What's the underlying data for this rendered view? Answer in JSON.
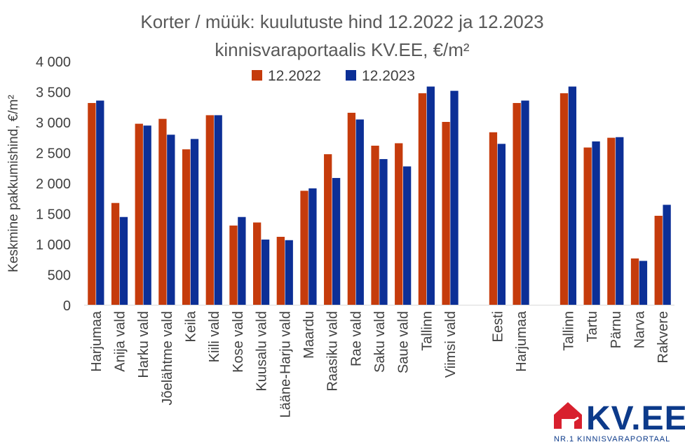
{
  "chart_data": {
    "type": "bar",
    "title": "Korter / müük: kuulutuste hind 12.2022 ja 12.2023",
    "subtitle": "kinnisvaraportaalis KV.EE, €/m²",
    "ylabel": "Keskmine pakkumishind, €/m²",
    "xlabel": "",
    "ylim": [
      0,
      4000
    ],
    "yticks": [
      0,
      500,
      1000,
      1500,
      2000,
      2500,
      3000,
      3500,
      4000
    ],
    "ytick_labels": [
      "0",
      "500",
      "1 000",
      "1 500",
      "2 000",
      "2 500",
      "3 000",
      "3 500",
      "4 000"
    ],
    "grid": false,
    "legend_position": "top-center",
    "categories": [
      "Harjumaa",
      "Anija vald",
      "Harku vald",
      "Jõelähtme vald",
      "Keila",
      "Kiili vald",
      "Kose vald",
      "Kuusalu vald",
      "Lääne-Harju vald",
      "Maardu",
      "Raasiku vald",
      "Rae vald",
      "Saku vald",
      "Saue vald",
      "Tallinn",
      "Viimsi vald",
      "",
      "Eesti",
      "Harjumaa",
      "",
      "Tallinn",
      "Tartu",
      "Pärnu",
      "Narva",
      "Rakvere"
    ],
    "series": [
      {
        "name": "12.2022",
        "color": "#c53b0c",
        "values": [
          3310,
          1670,
          2970,
          3050,
          2550,
          3110,
          1300,
          1350,
          1115,
          1870,
          2470,
          3150,
          2610,
          2650,
          3470,
          3000,
          null,
          2830,
          3310,
          null,
          3470,
          2580,
          2740,
          760,
          1460
        ]
      },
      {
        "name": "12.2023",
        "color": "#0c2f96",
        "values": [
          3350,
          1440,
          2940,
          2790,
          2720,
          3110,
          1440,
          1070,
          1060,
          1910,
          2080,
          3040,
          2390,
          2270,
          3580,
          3510,
          null,
          2640,
          3350,
          null,
          3580,
          2680,
          2750,
          720,
          1640
        ]
      }
    ]
  },
  "logo": {
    "text": "KV.EE",
    "tagline": "NR.1 KINNISVARAPORTAAL",
    "icon": "house-logo-icon",
    "colors": {
      "red": "#d8202e",
      "blue": "#0c3a8a"
    }
  }
}
